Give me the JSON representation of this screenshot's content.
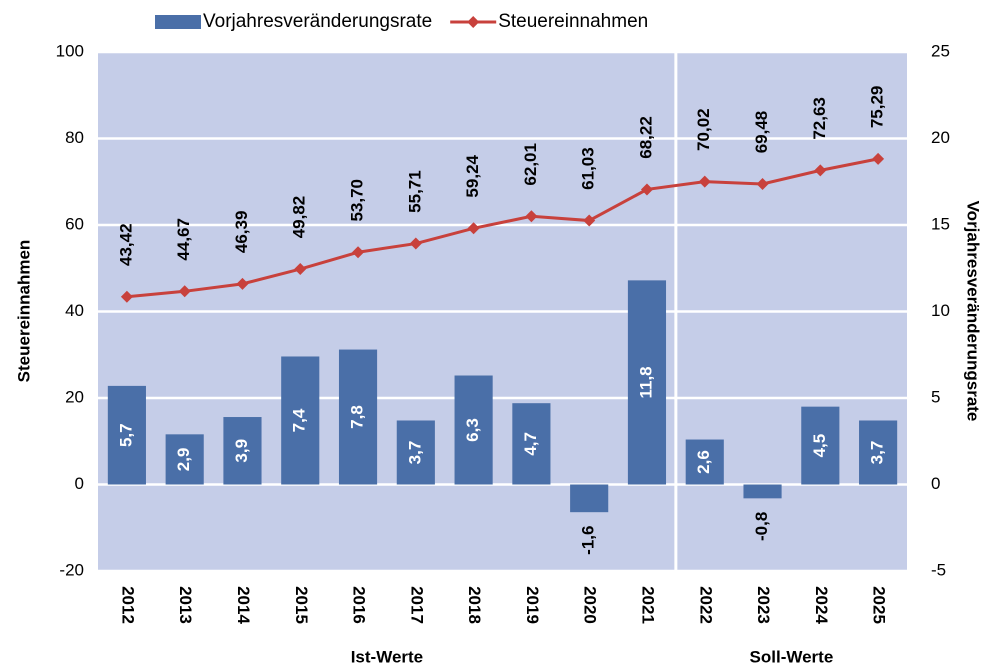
{
  "chart_data": {
    "type": "bar-line",
    "categories": [
      "2012",
      "2013",
      "2014",
      "2015",
      "2016",
      "2017",
      "2018",
      "2019",
      "2020",
      "2021",
      "2022",
      "2023",
      "2024",
      "2025"
    ],
    "groups": [
      {
        "name": "Ist-Werte",
        "count": 10
      },
      {
        "name": "Soll-Werte",
        "count": 4
      }
    ],
    "series": [
      {
        "name": "Vorjahresveränderungsrate",
        "type": "bar",
        "axis": "y2",
        "color": "#4a6fa8",
        "values": [
          5.7,
          2.9,
          3.9,
          7.4,
          7.8,
          3.7,
          6.3,
          4.7,
          -1.6,
          11.8,
          2.6,
          -0.8,
          4.5,
          3.7
        ],
        "value_labels": [
          "5,7",
          "2,9",
          "3,9",
          "7,4",
          "7,8",
          "3,7",
          "6,3",
          "4,7",
          "-1,6",
          "11,8",
          "2,6",
          "-0,8",
          "4,5",
          "3,7"
        ]
      },
      {
        "name": "Steuereinnahmen",
        "type": "line",
        "axis": "y",
        "color": "#c8413c",
        "values": [
          43.42,
          44.67,
          46.39,
          49.82,
          53.7,
          55.71,
          59.24,
          62.01,
          61.03,
          68.22,
          70.02,
          69.48,
          72.63,
          75.29
        ],
        "value_labels": [
          "43,42",
          "44,67",
          "46,39",
          "49,82",
          "53,70",
          "55,71",
          "59,24",
          "62,01",
          "61,03",
          "68,22",
          "70,02",
          "69,48",
          "72,63",
          "75,29"
        ]
      }
    ],
    "ylabel": "Steuereinnahmen",
    "y2label": "Vorjahresveränderungsrate",
    "ylim": [
      -20,
      100
    ],
    "yticks": [
      -20,
      0,
      20,
      40,
      60,
      80,
      100
    ],
    "y2lim": [
      -5,
      25
    ],
    "y2ticks": [
      -5,
      0,
      5,
      10,
      15,
      20,
      25
    ],
    "grid": true,
    "legend": "top"
  }
}
